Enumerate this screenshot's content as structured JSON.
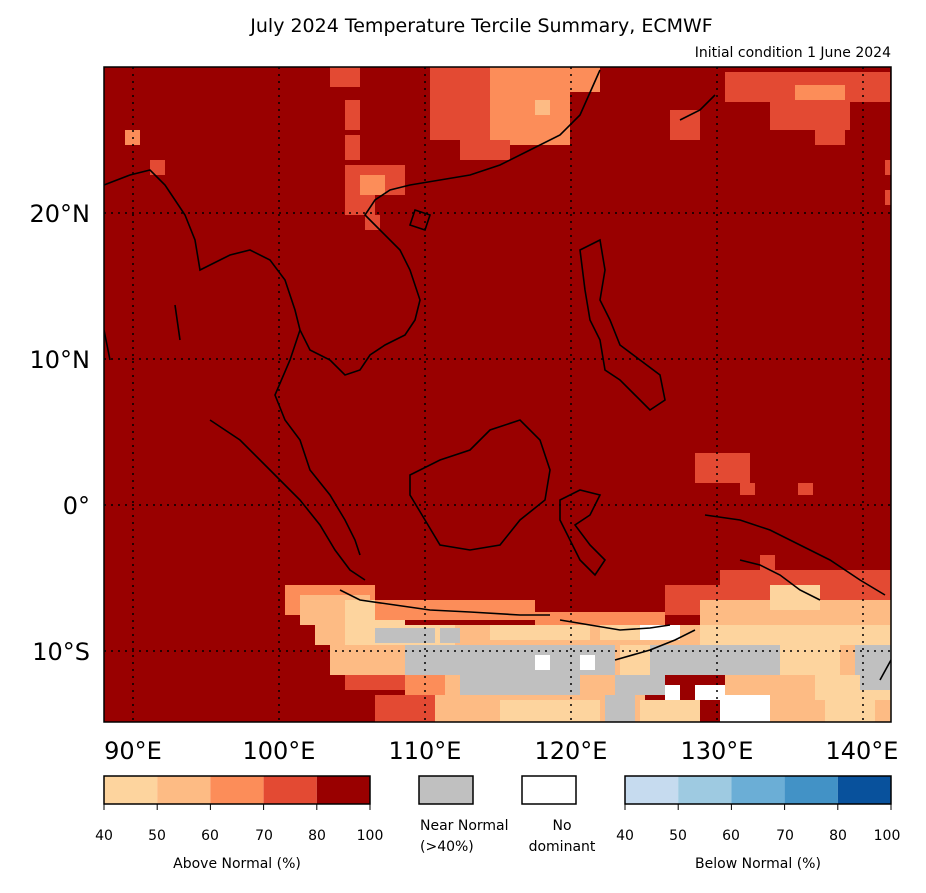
{
  "title": "July 2024 Temperature Tercile Summary, ECMWF",
  "subtitle": "Initial condition 1 June 2024",
  "map": {
    "lat_labels": [
      "20°N",
      "10°N",
      "0°",
      "10°S"
    ],
    "lon_labels": [
      "90°E",
      "100°E",
      "110°E",
      "120°E",
      "130°E",
      "140°E"
    ],
    "lat_range": [
      -15,
      30
    ],
    "lon_range": [
      88,
      142
    ],
    "gridlines": "dotted",
    "background_category": "above-normal 80-100%"
  },
  "legend": {
    "above": {
      "caption": "Above Normal (%)",
      "ticks": [
        "40",
        "50",
        "60",
        "70",
        "80",
        "100"
      ],
      "colors": [
        "#fdd49e",
        "#fdbb84",
        "#fc8d59",
        "#e34a33",
        "#990000"
      ]
    },
    "near": {
      "caption_line1": "Near Normal",
      "caption_line2": "(>40%)",
      "color": "#c0c0c0"
    },
    "none": {
      "caption_line1": "No",
      "caption_line2": "dominant",
      "color": "#ffffff"
    },
    "below": {
      "caption": "Below Normal (%)",
      "ticks": [
        "40",
        "50",
        "60",
        "70",
        "80",
        "100"
      ],
      "colors": [
        "#c6dbef",
        "#9ecae1",
        "#6baed6",
        "#4292c6",
        "#08519c"
      ]
    }
  }
}
